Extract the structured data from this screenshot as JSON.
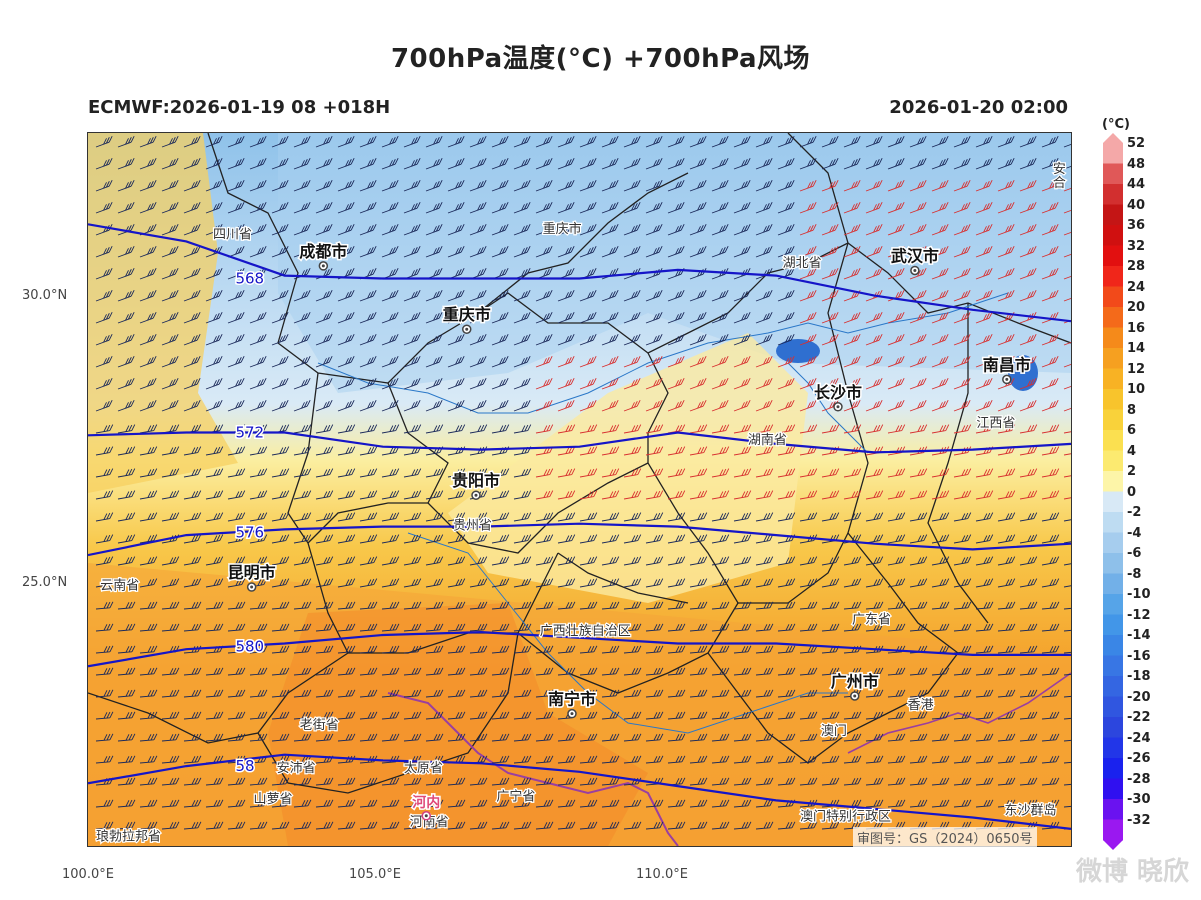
{
  "header": {
    "title": "700hPa温度(°C) +700hPa风场",
    "model_run": "ECMWF:2026-01-19 08 +018H",
    "valid_time": "2026-01-20 02:00"
  },
  "axes": {
    "lon_labels": [
      "100.0°E",
      "105.0°E",
      "110.0°E"
    ],
    "lat_labels": [
      "30.0°N",
      "25.0°N"
    ],
    "lon_range": [
      100.0,
      117.0
    ],
    "lat_range": [
      20.5,
      33.0
    ]
  },
  "colorbar": {
    "unit": "(°C)",
    "labels": [
      "52",
      "48",
      "44",
      "40",
      "36",
      "32",
      "28",
      "24",
      "20",
      "16",
      "14",
      "12",
      "10",
      "8",
      "6",
      "4",
      "2",
      "0",
      "-2",
      "-4",
      "-6",
      "-8",
      "-10",
      "-12",
      "-14",
      "-16",
      "-18",
      "-20",
      "-22",
      "-24",
      "-26",
      "-28",
      "-30",
      "-32"
    ],
    "colors": [
      "#f4a8a8",
      "#e05858",
      "#d22f2f",
      "#c41515",
      "#d01010",
      "#e21010",
      "#f0261a",
      "#f24a1a",
      "#f46a1a",
      "#f58a1a",
      "#f6a020",
      "#f8b224",
      "#f8c42c",
      "#f9d23a",
      "#fbe050",
      "#fcea70",
      "#fdf5a8",
      "#d8e9f6",
      "#bedcf2",
      "#a6cdee",
      "#8ec0ea",
      "#72b0e8",
      "#56a4e8",
      "#4296e8",
      "#3a86e6",
      "#3876e4",
      "#3466e2",
      "#3056e0",
      "#2c46de",
      "#2236e8",
      "#1a22ee",
      "#3010f0",
      "#6a12f0",
      "#9a18f0"
    ]
  },
  "cities": [
    {
      "name": "成都市",
      "lon": 104.07,
      "lat": 30.67
    },
    {
      "name": "重庆市",
      "lon": 106.55,
      "lat": 29.56
    },
    {
      "name": "武汉市",
      "lon": 114.3,
      "lat": 30.59
    },
    {
      "name": "长沙市",
      "lon": 112.97,
      "lat": 28.2
    },
    {
      "name": "南昌市",
      "lon": 115.89,
      "lat": 28.68
    },
    {
      "name": "贵阳市",
      "lon": 106.71,
      "lat": 26.65
    },
    {
      "name": "昆明市",
      "lon": 102.83,
      "lat": 25.04
    },
    {
      "name": "南宁市",
      "lon": 108.37,
      "lat": 22.82
    },
    {
      "name": "广州市",
      "lon": 113.26,
      "lat": 23.13
    },
    {
      "name": "河内",
      "lon": 105.85,
      "lat": 21.03
    }
  ],
  "map_labels": [
    {
      "text": "四川省",
      "lon": 102.5,
      "lat": 31.15
    },
    {
      "text": "重庆市",
      "lon": 108.2,
      "lat": 31.25
    },
    {
      "text": "湖北省",
      "lon": 112.35,
      "lat": 30.65
    },
    {
      "text": "湖南省",
      "lon": 111.75,
      "lat": 27.55
    },
    {
      "text": "江西省",
      "lon": 115.7,
      "lat": 27.85
    },
    {
      "text": "贵州省",
      "lon": 106.65,
      "lat": 26.05
    },
    {
      "text": "云南省",
      "lon": 100.55,
      "lat": 25.0
    },
    {
      "text": "广西壮族自治区",
      "lon": 108.6,
      "lat": 24.2
    },
    {
      "text": "广东省",
      "lon": 113.55,
      "lat": 24.4
    },
    {
      "text": "老街省",
      "lon": 104.0,
      "lat": 22.55
    },
    {
      "text": "安沛省",
      "lon": 103.6,
      "lat": 21.8
    },
    {
      "text": "山萝省",
      "lon": 103.2,
      "lat": 21.25
    },
    {
      "text": "太原省",
      "lon": 105.8,
      "lat": 21.8
    },
    {
      "text": "广宁省",
      "lon": 107.4,
      "lat": 21.3
    },
    {
      "text": "河南省",
      "lon": 105.9,
      "lat": 20.85
    },
    {
      "text": "澳门特别行政区",
      "lon": 113.1,
      "lat": 20.95
    },
    {
      "text": "东沙群岛",
      "lon": 116.3,
      "lat": 21.05
    },
    {
      "text": "澳门",
      "lon": 112.9,
      "lat": 22.45
    },
    {
      "text": "香港",
      "lon": 114.4,
      "lat": 22.9
    },
    {
      "text": "琅勃拉邦省",
      "lon": 100.7,
      "lat": 20.6
    },
    {
      "text": "安",
      "lon": 116.8,
      "lat": 32.3
    },
    {
      "text": "合",
      "lon": 116.8,
      "lat": 32.05
    }
  ],
  "contours": [
    {
      "label": "568",
      "lon": 102.55,
      "lat": 30.45,
      "lats": [
        31.4,
        31.1,
        30.5,
        30.45,
        30.45,
        30.45,
        30.6,
        30.5,
        30.15,
        29.9,
        29.7
      ]
    },
    {
      "label": "572",
      "lon": 102.55,
      "lat": 27.75,
      "lats": [
        27.7,
        27.75,
        27.75,
        27.5,
        27.45,
        27.5,
        27.75,
        27.55,
        27.4,
        27.45,
        27.55
      ]
    },
    {
      "label": "576",
      "lon": 102.55,
      "lat": 26.0,
      "lats": [
        25.6,
        25.95,
        26.05,
        26.1,
        26.1,
        26.15,
        26.1,
        25.95,
        25.8,
        25.7,
        25.8
      ]
    },
    {
      "label": "580",
      "lon": 102.55,
      "lat": 24.0,
      "lats": [
        23.65,
        23.95,
        24.05,
        24.2,
        24.25,
        24.15,
        24.05,
        24.05,
        23.95,
        23.85,
        23.85
      ]
    },
    {
      "label": "58",
      "lon": 102.55,
      "lat": 21.9,
      "lats": [
        21.6,
        21.9,
        22.1,
        22.0,
        21.95,
        21.8,
        21.55,
        21.3,
        21.15,
        21.0,
        20.8
      ]
    }
  ],
  "approval_no": "审图号：GS（2024）0650号",
  "watermark": "微博 晓欣"
}
